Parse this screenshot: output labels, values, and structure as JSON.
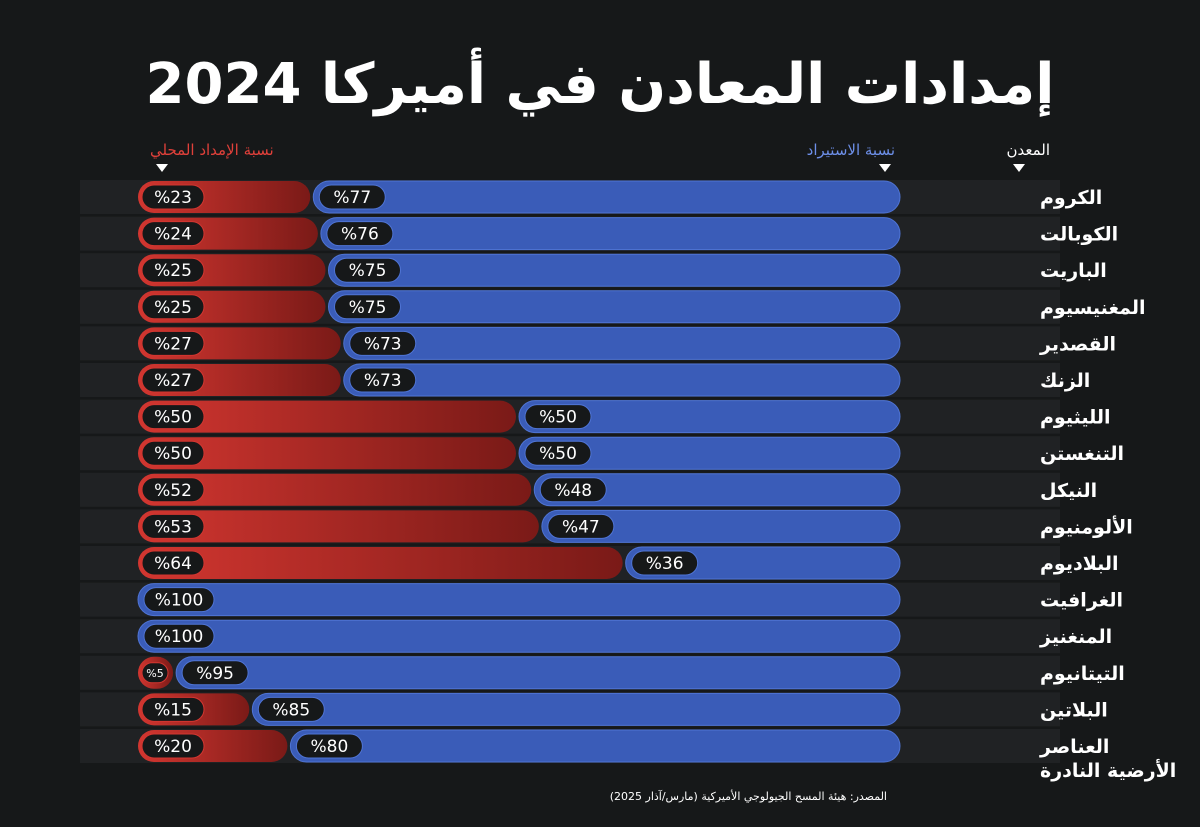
{
  "title": "إمدادات المعادن في أميركا 2024",
  "headers": {
    "mineral": "المعدن",
    "import": "نسبة الاستيراد",
    "domestic": "نسبة الإمداد المحلي"
  },
  "source": "المصدر: هيئة المسح الجيولوجي الأميركية (مارس/آذار 2025)",
  "colors": {
    "import": "#3a5cb8",
    "import_edge": "#4f74d4",
    "domestic": "#d23630",
    "domestic_dark": "#7a1a17",
    "pill": "#161819",
    "row_bg": "#202224",
    "header_import": "#6d8fe8",
    "header_domestic": "#e0403a"
  },
  "chart_data": {
    "type": "bar",
    "orientation": "horizontal-stacked-100",
    "categories": [
      "الكروم",
      "الكوبالت",
      "الباريت",
      "المغنيسيوم",
      "القصدير",
      "الزنك",
      "الليثيوم",
      "التنغستن",
      "النيكل",
      "الألومنيوم",
      "البلاديوم",
      "الغرافيت",
      "المنغنيز",
      "التيتانيوم",
      "البلاتين",
      "العناصر الأرضية النادرة"
    ],
    "series": [
      {
        "name": "نسبة الاستيراد",
        "values": [
          77,
          76,
          75,
          75,
          73,
          73,
          50,
          50,
          48,
          47,
          36,
          100,
          100,
          95,
          85,
          80
        ]
      },
      {
        "name": "نسبة الإمداد المحلي",
        "values": [
          23,
          24,
          25,
          25,
          27,
          27,
          50,
          50,
          52,
          53,
          64,
          0,
          0,
          5,
          15,
          20
        ]
      }
    ],
    "value_format": "%{v}",
    "xlim": [
      0,
      100
    ]
  }
}
